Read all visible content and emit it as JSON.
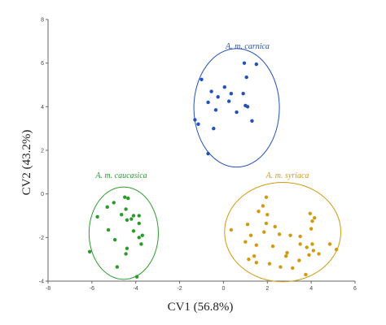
{
  "chart_data": {
    "type": "scatter",
    "xlabel": "CV1 (56.8%)",
    "ylabel": "CV2 (43.2%)",
    "xlim": [
      -8,
      6
    ],
    "ylim": [
      -4,
      8
    ],
    "xticks": [
      "-8",
      "-6",
      "-4",
      "-2",
      "0",
      "2",
      "4",
      "6"
    ],
    "yticks": [
      "-4",
      "-2",
      "0",
      "2",
      "4",
      "6",
      "8"
    ],
    "grid": false,
    "groups": [
      {
        "name": "A. m. carnica",
        "color": "#2451b8",
        "ellipse": {
          "cx": 0.6,
          "cy": 3.95,
          "rx": 1.95,
          "ry": 2.72
        },
        "points": [
          [
            0.95,
            6.0
          ],
          [
            1.5,
            5.95
          ],
          [
            -1.0,
            5.25
          ],
          [
            1.05,
            5.35
          ],
          [
            0.05,
            4.9
          ],
          [
            -0.55,
            4.7
          ],
          [
            0.35,
            4.6
          ],
          [
            0.9,
            4.6
          ],
          [
            -0.25,
            4.45
          ],
          [
            -0.7,
            4.2
          ],
          [
            0.25,
            4.25
          ],
          [
            1.0,
            4.05
          ],
          [
            1.1,
            4.0
          ],
          [
            -0.35,
            3.85
          ],
          [
            0.6,
            3.75
          ],
          [
            -1.3,
            3.4
          ],
          [
            1.3,
            3.35
          ],
          [
            -1.15,
            3.2
          ],
          [
            -0.45,
            3.0
          ],
          [
            -0.7,
            1.85
          ]
        ]
      },
      {
        "name": "A. m. caucasica",
        "color": "#2a9a2a",
        "ellipse": {
          "cx": -4.55,
          "cy": -1.8,
          "rx": 1.58,
          "ry": 2.12
        },
        "points": [
          [
            -4.5,
            -0.15
          ],
          [
            -4.35,
            -0.2
          ],
          [
            -5.0,
            -0.4
          ],
          [
            -5.3,
            -0.6
          ],
          [
            -4.45,
            -0.7
          ],
          [
            -4.65,
            -0.95
          ],
          [
            -4.1,
            -1.0
          ],
          [
            -5.75,
            -1.05
          ],
          [
            -3.85,
            -1.0
          ],
          [
            -4.4,
            -1.2
          ],
          [
            -4.2,
            -1.15
          ],
          [
            -3.85,
            -1.35
          ],
          [
            -5.25,
            -1.65
          ],
          [
            -4.1,
            -1.7
          ],
          [
            -3.7,
            -1.9
          ],
          [
            -3.85,
            -2.0
          ],
          [
            -4.95,
            -2.1
          ],
          [
            -3.75,
            -2.3
          ],
          [
            -4.4,
            -2.5
          ],
          [
            -6.1,
            -2.65
          ],
          [
            -4.45,
            -2.75
          ],
          [
            -4.85,
            -3.35
          ],
          [
            -3.95,
            -3.8
          ]
        ]
      },
      {
        "name": "A. m. syriaca",
        "color": "#d29a10",
        "ellipse": {
          "cx": 2.7,
          "cy": -1.75,
          "rx": 2.65,
          "ry": 2.28
        },
        "points": [
          [
            1.95,
            -0.15
          ],
          [
            1.8,
            -0.55
          ],
          [
            2.0,
            -0.95
          ],
          [
            1.95,
            -1.35
          ],
          [
            1.1,
            -1.4
          ],
          [
            1.85,
            -1.75
          ],
          [
            1.25,
            -1.9
          ],
          [
            2.55,
            -1.85
          ],
          [
            3.05,
            -1.9
          ],
          [
            1.0,
            -2.2
          ],
          [
            1.5,
            -2.35
          ],
          [
            2.25,
            -2.4
          ],
          [
            3.5,
            -2.3
          ],
          [
            3.8,
            -2.45
          ],
          [
            4.05,
            -2.3
          ],
          [
            3.9,
            -2.8
          ],
          [
            4.35,
            -2.75
          ],
          [
            4.1,
            -2.6
          ],
          [
            4.85,
            -2.3
          ],
          [
            5.15,
            -2.55
          ],
          [
            3.45,
            -3.05
          ],
          [
            2.85,
            -2.85
          ],
          [
            0.35,
            -1.65
          ],
          [
            1.15,
            -3.0
          ],
          [
            1.5,
            -3.15
          ],
          [
            2.6,
            -3.35
          ],
          [
            3.15,
            -3.4
          ],
          [
            2.1,
            -3.2
          ],
          [
            4.0,
            -1.6
          ],
          [
            4.15,
            -1.1
          ],
          [
            3.95,
            -0.9
          ],
          [
            4.05,
            -1.25
          ],
          [
            3.5,
            -1.95
          ],
          [
            1.6,
            -0.8
          ],
          [
            3.75,
            -3.7
          ],
          [
            2.35,
            -1.5
          ],
          [
            1.4,
            -2.85
          ],
          [
            2.9,
            -2.7
          ]
        ]
      }
    ]
  }
}
